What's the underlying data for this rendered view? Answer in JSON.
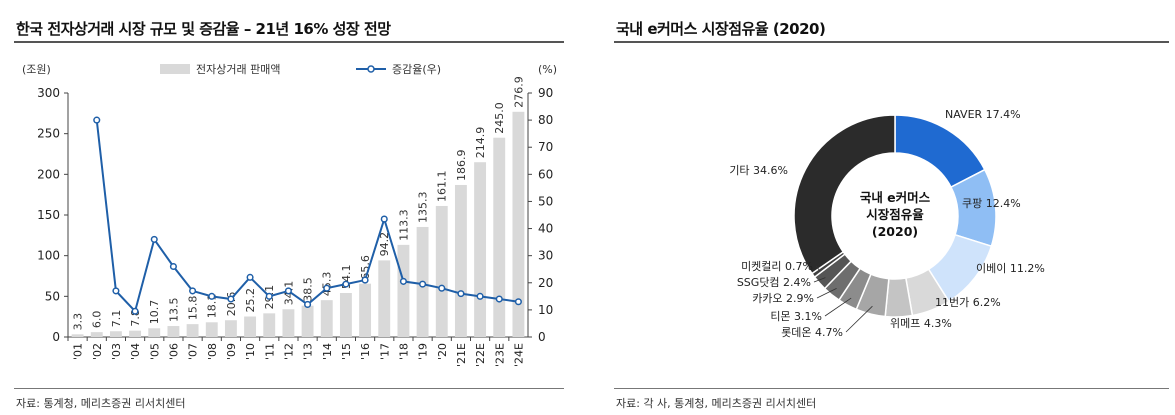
{
  "left": {
    "title": "한국 전자상거래 시장 규모 및 증감율 – 21년 16% 성장 전망",
    "source": "자료: 통계청, 메리츠증권 리서치센터",
    "chart_data": {
      "type": "bar",
      "categories": [
        "'01",
        "'02",
        "'03",
        "'04",
        "'05",
        "'06",
        "'07",
        "'08",
        "'09",
        "'10",
        "'11",
        "'12",
        "'13",
        "'14",
        "'15",
        "'16",
        "'17",
        "'18",
        "'19",
        "'20",
        "'21E",
        "'22E",
        "'23E",
        "'24E"
      ],
      "series": [
        {
          "name": "전자상거래 판매액",
          "type": "bar",
          "axis": "left",
          "color": "#d9d9d9",
          "values": [
            3.3,
            6.0,
            7.1,
            7.8,
            10.7,
            13.5,
            15.8,
            18.1,
            20.6,
            25.2,
            29.1,
            34.1,
            38.5,
            45.3,
            54.1,
            65.6,
            94.2,
            113.3,
            135.3,
            161.1,
            186.9,
            214.9,
            245.0,
            276.9
          ],
          "labels": [
            "3.3",
            "6.0",
            "7.1",
            "7.8",
            "10.7",
            "13.5",
            "15.8",
            "18.1",
            "20.6",
            "25.2",
            "29.1",
            "34.1",
            "38.5",
            "45.3",
            "54.1",
            "65.6",
            "94.2",
            "113.3",
            "135.3",
            "161.1",
            "186.9",
            "214.9",
            "245.0",
            "276.9"
          ]
        },
        {
          "name": "증감율(우)",
          "type": "line",
          "axis": "right",
          "color": "#1f5fa8",
          "values": [
            null,
            80,
            17,
            9.5,
            36,
            26,
            17,
            15,
            14,
            22,
            15,
            17,
            12,
            18,
            19.5,
            21,
            43.5,
            20.5,
            19.5,
            18,
            16,
            15,
            14,
            13
          ]
        }
      ],
      "ylabel_left": "(조원)",
      "ylabel_right": "(%)",
      "ylim_left": [
        0,
        300
      ],
      "yticks_left": [
        0,
        50,
        100,
        150,
        200,
        250,
        300
      ],
      "ylim_right": [
        0,
        90
      ],
      "yticks_right": [
        0,
        10,
        20,
        30,
        40,
        50,
        60,
        70,
        80,
        90
      ],
      "grid": false,
      "legend": "top"
    }
  },
  "right": {
    "title": "국내 e커머스 시장점유율 (2020)",
    "source": "자료: 각 사, 통계청, 메리츠증권 리서치센터",
    "chart_data": {
      "type": "pie",
      "center_label": [
        "국내 e커머스",
        "시장점유율",
        "(2020)"
      ],
      "slices": [
        {
          "name": "NAVER",
          "label": "NAVER 17.4%",
          "value": 17.4,
          "color": "#1f6ad1"
        },
        {
          "name": "쿠팡",
          "label": "쿠팡 12.4%",
          "value": 12.4,
          "color": "#8fbef4"
        },
        {
          "name": "이베이",
          "label": "이베이 11.2%",
          "value": 11.2,
          "color": "#cfe3fb"
        },
        {
          "name": "11번가",
          "label": "11번가 6.2%",
          "value": 6.2,
          "color": "#d9d9d9"
        },
        {
          "name": "위메프",
          "label": "위메프 4.3%",
          "value": 4.3,
          "color": "#c4c4c4"
        },
        {
          "name": "롯데온",
          "label": "롯데온  4.7%",
          "value": 4.7,
          "color": "#a6a6a6"
        },
        {
          "name": "티몬",
          "label": "티몬 3.1%",
          "value": 3.1,
          "color": "#8c8c8c"
        },
        {
          "name": "카카오",
          "label": "카카오 2.9%",
          "value": 2.9,
          "color": "#6e6e6e"
        },
        {
          "name": "SSG닷컴",
          "label": "SSG닷컴 2.4%",
          "value": 2.4,
          "color": "#555555"
        },
        {
          "name": "미켓컬리",
          "label": "미켓컬리 0.7%",
          "value": 0.7,
          "color": "#404040"
        },
        {
          "name": "기타",
          "label": "기타 34.6%",
          "value": 34.6,
          "color": "#2b2b2b"
        }
      ]
    }
  }
}
